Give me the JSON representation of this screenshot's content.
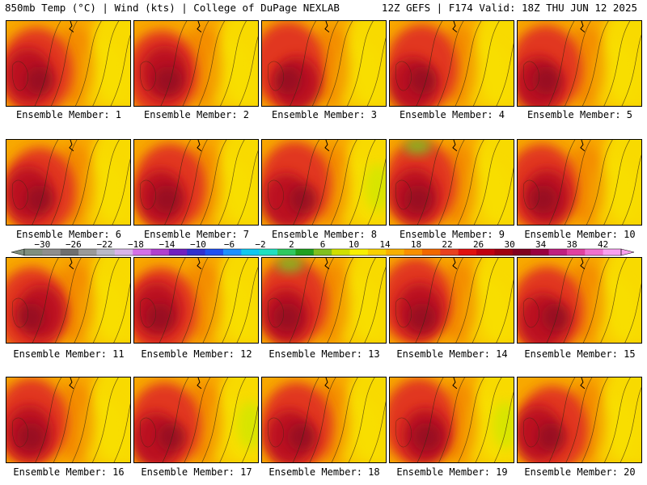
{
  "header": {
    "left": "850mb Temp (°C) | Wind (kts) | College of DuPage NEXLAB",
    "right": "12Z GEFS | F174 Valid: 18Z THU JUN 12 2025"
  },
  "panel_label_prefix": "Ensemble Member: ",
  "members": [
    "1",
    "2",
    "3",
    "4",
    "5",
    "6",
    "7",
    "8",
    "9",
    "10",
    "11",
    "12",
    "13",
    "14",
    "15",
    "16",
    "17",
    "18",
    "19",
    "20"
  ],
  "colorbar": {
    "tick_labels": [
      "−30",
      "−26",
      "−22",
      "−18",
      "−14",
      "−10",
      "−6",
      "−2",
      "2",
      "6",
      "10",
      "14",
      "18",
      "22",
      "26",
      "30",
      "34",
      "38",
      "42"
    ],
    "bin_colors": [
      "#7f8f7f",
      "#8e8e8e",
      "#6f6f6f",
      "#9a9a9a",
      "#b9b9c8",
      "#d8b5e8",
      "#d470e8",
      "#b040d0",
      "#7020c0",
      "#3030d0",
      "#2050f0",
      "#1e90ff",
      "#10c8f0",
      "#20e0c0",
      "#30c860",
      "#20a020",
      "#80c020",
      "#d0e000",
      "#f8f000",
      "#f8d000",
      "#f8b000",
      "#f89000",
      "#f06800",
      "#e84020",
      "#e01010",
      "#c00010",
      "#a00010",
      "#800020",
      "#9a0040",
      "#c02080",
      "#e040a0",
      "#f070d0",
      "#f8a0f0"
    ]
  },
  "temperature_colors": {
    "cool": "#d4e600",
    "warm_yellow": "#f8e000",
    "orange": "#f8a800",
    "dark_orange": "#f07800",
    "red": "#e03020",
    "dark_red": "#b81020",
    "maroon": "#8a0820"
  }
}
